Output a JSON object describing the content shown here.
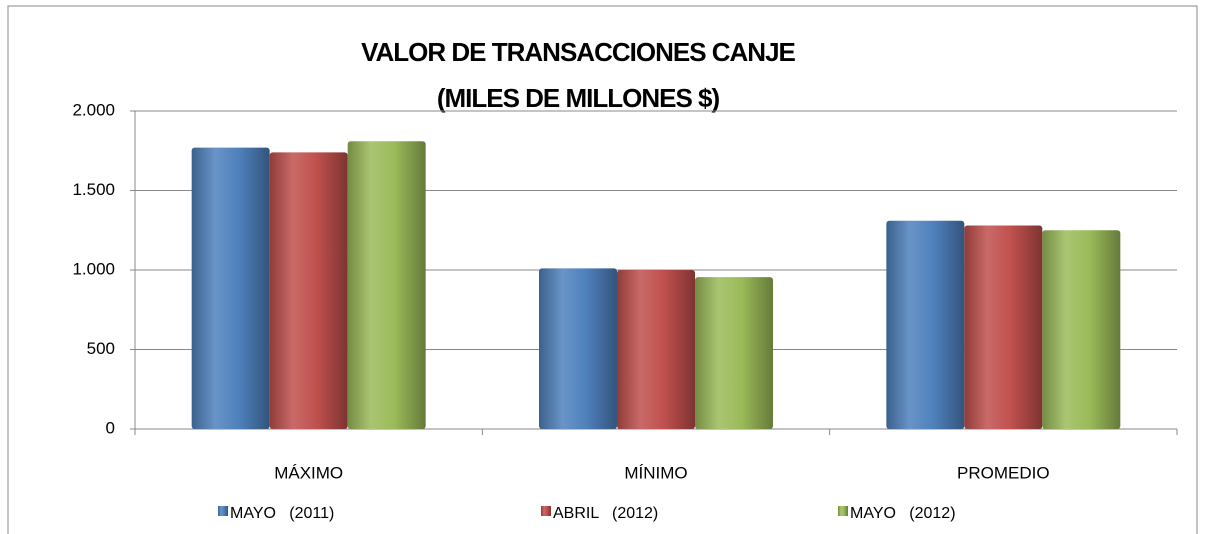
{
  "chart_data": {
    "type": "bar",
    "title": [
      "VALOR DE TRANSACCIONES CANJE",
      "(MILES DE MILLONES $)"
    ],
    "categories": [
      "MÁXIMO",
      "MÍNIMO",
      "PROMEDIO"
    ],
    "series": [
      {
        "name": "MAYO   (2011)",
        "color": "#4f81bd",
        "values": [
          1770,
          1010,
          1310
        ]
      },
      {
        "name": "ABRIL   (2012)",
        "color": "#c0504d",
        "values": [
          1740,
          1000,
          1280
        ]
      },
      {
        "name": "MAYO   (2012)",
        "color": "#9bbb59",
        "values": [
          1810,
          955,
          1250
        ]
      }
    ],
    "ylim": [
      0,
      2000
    ],
    "yticks": [
      0,
      500,
      {
        "value": 1000,
        "label": "1.000"
      },
      {
        "value": 1500,
        "label": "1.500"
      },
      {
        "value": 2000,
        "label": "2.000"
      }
    ],
    "grid": true,
    "legend": "bottom"
  }
}
